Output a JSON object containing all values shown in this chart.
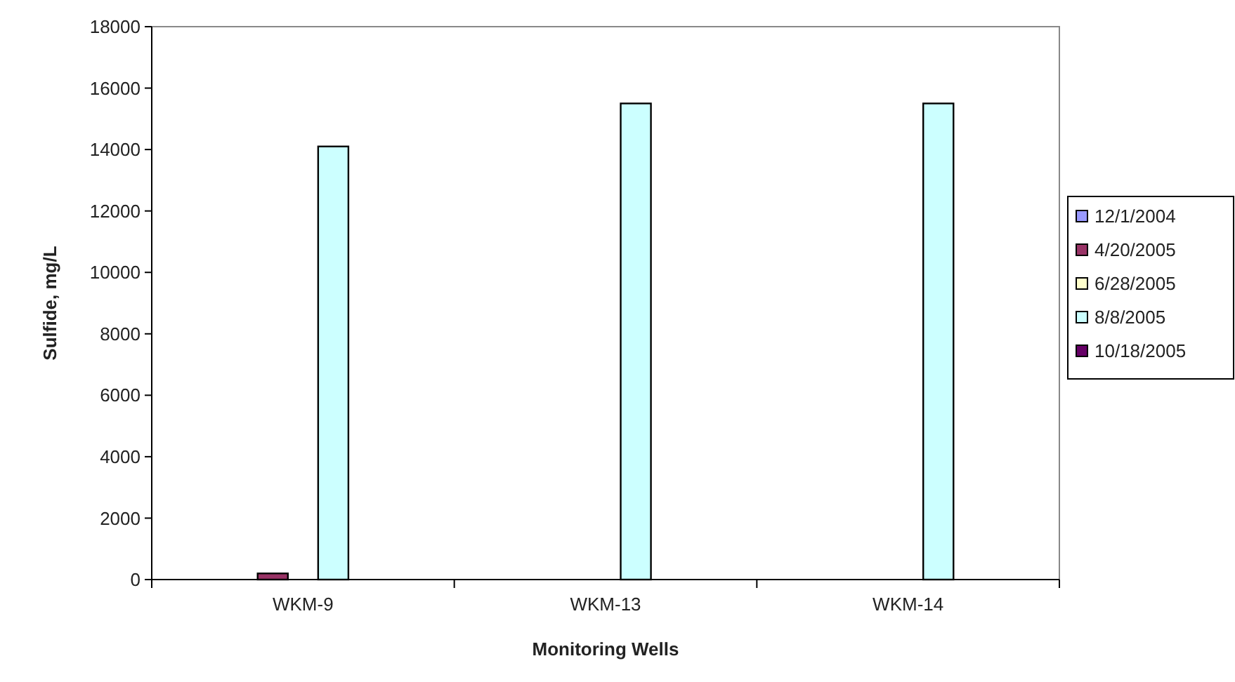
{
  "chart_data": {
    "type": "bar",
    "xlabel": "Monitoring Wells",
    "ylabel": "Sulfide, mg/L",
    "categories": [
      "WKM-9",
      "WKM-13",
      "WKM-14"
    ],
    "series": [
      {
        "name": "12/1/2004",
        "color": "#9999ff",
        "values": [
          null,
          null,
          null
        ]
      },
      {
        "name": "4/20/2005",
        "color": "#993366",
        "values": [
          200,
          null,
          null
        ]
      },
      {
        "name": "6/28/2005",
        "color": "#ffffcc",
        "values": [
          null,
          null,
          null
        ]
      },
      {
        "name": "8/8/2005",
        "color": "#ccffff",
        "values": [
          14100,
          15500,
          15500
        ]
      },
      {
        "name": "10/18/2005",
        "color": "#660066",
        "values": [
          null,
          null,
          null
        ]
      }
    ],
    "ylim": [
      0,
      18000
    ],
    "yticks": [
      0,
      2000,
      4000,
      6000,
      8000,
      10000,
      12000,
      14000,
      16000,
      18000
    ],
    "grid": false,
    "legend": "right"
  }
}
